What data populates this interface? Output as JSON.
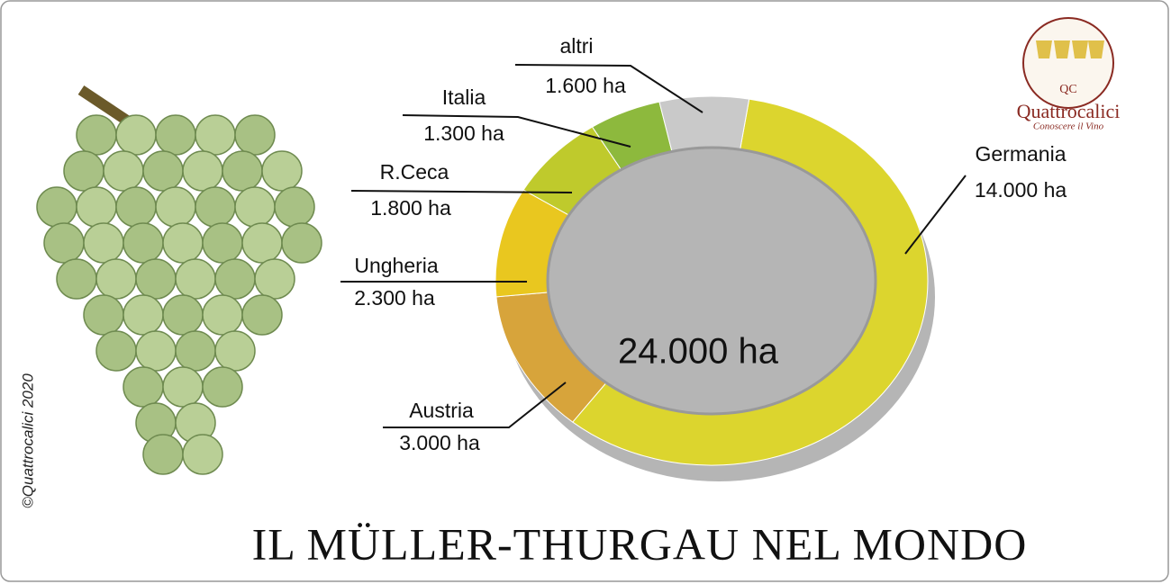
{
  "chart_data": {
    "type": "donut",
    "title": "IL MÜLLER-THURGAU NEL MONDO",
    "total_label": "24.000 ha",
    "copyright": "©Quattrocalici 2020",
    "logo": {
      "initials": "QC",
      "name": "Quattrocalici",
      "tagline": "Conoscere il Vino"
    },
    "categories": [
      "Germania",
      "Austria",
      "Ungheria",
      "R.Ceca",
      "Italia",
      "altri"
    ],
    "values": [
      14000,
      3000,
      2300,
      1800,
      1300,
      1600
    ],
    "value_labels": [
      "14.000 ha",
      "3.000 ha",
      "2.300 ha",
      "1.800 ha",
      "1.300 ha",
      "1.600 ha"
    ],
    "colors": [
      "#dcd52e",
      "#d7a43b",
      "#e9c71f",
      "#bfca2c",
      "#8db93d",
      "#c9c9c9"
    ]
  }
}
